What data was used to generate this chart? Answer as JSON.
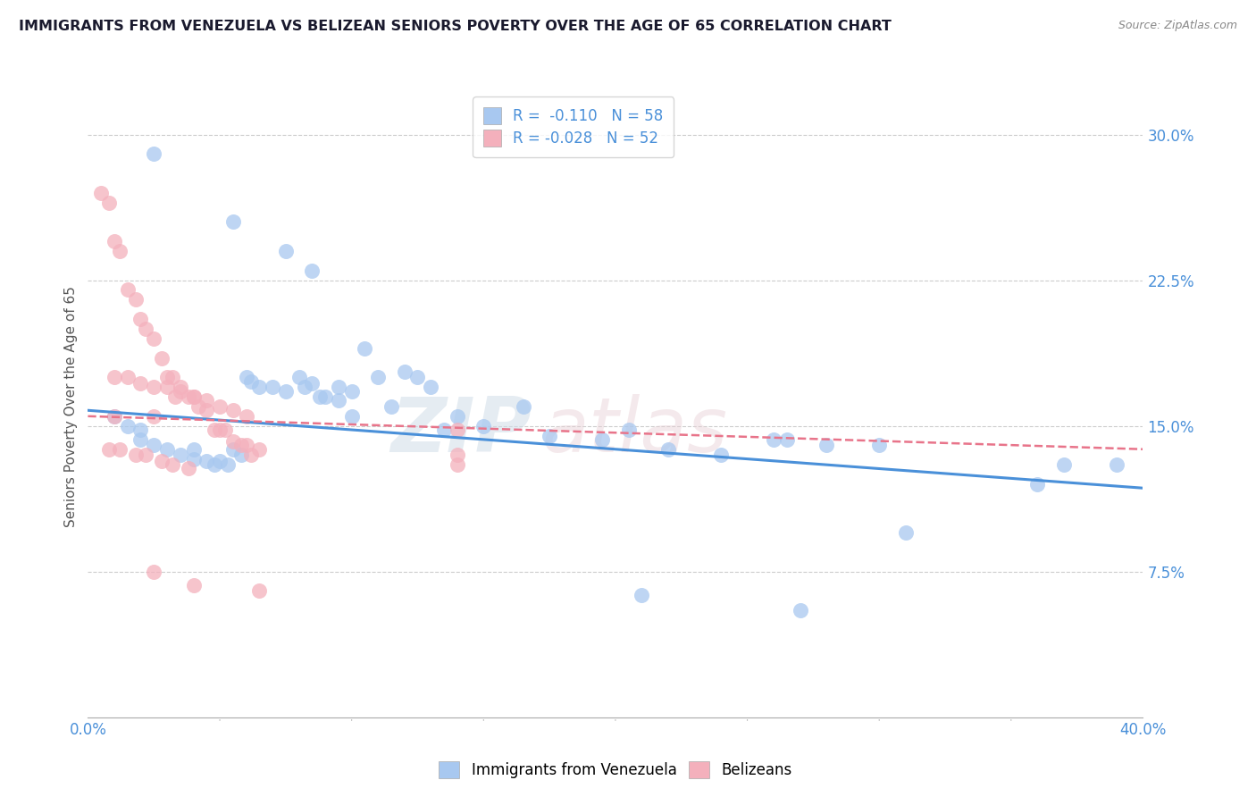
{
  "title": "IMMIGRANTS FROM VENEZUELA VS BELIZEAN SENIORS POVERTY OVER THE AGE OF 65 CORRELATION CHART",
  "source": "Source: ZipAtlas.com",
  "ylabel": "Seniors Poverty Over the Age of 65",
  "yticks": [
    0.0,
    0.075,
    0.15,
    0.225,
    0.3
  ],
  "ytick_labels": [
    "",
    "7.5%",
    "15.0%",
    "22.5%",
    "30.0%"
  ],
  "xmin": 0.0,
  "xmax": 0.4,
  "ymin": 0.0,
  "ymax": 0.32,
  "legend_entry1": "R =  -0.110   N = 58",
  "legend_entry2": "R = -0.028   N = 52",
  "legend_label1": "Immigrants from Venezuela",
  "legend_label2": "Belizeans",
  "blue_color": "#A8C8F0",
  "pink_color": "#F4B0BC",
  "blue_line_color": "#4A90D9",
  "pink_line_color": "#E8748A",
  "title_color": "#1a1a2e",
  "axis_label_color": "#4A90D9",
  "watermark_zip": "ZIP",
  "watermark_atlas": "atlas",
  "grid_color": "#cccccc",
  "background_color": "#ffffff",
  "blue_scatter_x": [
    0.025,
    0.055,
    0.075,
    0.085,
    0.01,
    0.015,
    0.02,
    0.02,
    0.025,
    0.03,
    0.035,
    0.04,
    0.04,
    0.045,
    0.048,
    0.05,
    0.053,
    0.055,
    0.058,
    0.06,
    0.062,
    0.065,
    0.07,
    0.075,
    0.08,
    0.082,
    0.085,
    0.088,
    0.09,
    0.095,
    0.095,
    0.1,
    0.1,
    0.105,
    0.11,
    0.115,
    0.12,
    0.125,
    0.13,
    0.135,
    0.14,
    0.15,
    0.165,
    0.175,
    0.195,
    0.205,
    0.22,
    0.24,
    0.28,
    0.3,
    0.31,
    0.36,
    0.37,
    0.39,
    0.21,
    0.26,
    0.265,
    0.27
  ],
  "blue_scatter_y": [
    0.29,
    0.255,
    0.24,
    0.23,
    0.155,
    0.15,
    0.148,
    0.143,
    0.14,
    0.138,
    0.135,
    0.133,
    0.138,
    0.132,
    0.13,
    0.132,
    0.13,
    0.138,
    0.135,
    0.175,
    0.173,
    0.17,
    0.17,
    0.168,
    0.175,
    0.17,
    0.172,
    0.165,
    0.165,
    0.163,
    0.17,
    0.168,
    0.155,
    0.19,
    0.175,
    0.16,
    0.178,
    0.175,
    0.17,
    0.148,
    0.155,
    0.15,
    0.16,
    0.145,
    0.143,
    0.148,
    0.138,
    0.135,
    0.14,
    0.14,
    0.095,
    0.12,
    0.13,
    0.13,
    0.063,
    0.143,
    0.143,
    0.055
  ],
  "pink_scatter_x": [
    0.005,
    0.008,
    0.01,
    0.01,
    0.012,
    0.015,
    0.018,
    0.02,
    0.022,
    0.025,
    0.025,
    0.028,
    0.03,
    0.032,
    0.033,
    0.035,
    0.038,
    0.04,
    0.042,
    0.045,
    0.048,
    0.05,
    0.052,
    0.055,
    0.058,
    0.06,
    0.062,
    0.065,
    0.01,
    0.015,
    0.02,
    0.025,
    0.03,
    0.035,
    0.04,
    0.045,
    0.05,
    0.055,
    0.06,
    0.008,
    0.012,
    0.018,
    0.022,
    0.028,
    0.032,
    0.038,
    0.14,
    0.14,
    0.14,
    0.025,
    0.04,
    0.065
  ],
  "pink_scatter_y": [
    0.27,
    0.265,
    0.245,
    0.155,
    0.24,
    0.22,
    0.215,
    0.205,
    0.2,
    0.195,
    0.155,
    0.185,
    0.175,
    0.175,
    0.165,
    0.17,
    0.165,
    0.165,
    0.16,
    0.158,
    0.148,
    0.148,
    0.148,
    0.142,
    0.14,
    0.14,
    0.135,
    0.138,
    0.175,
    0.175,
    0.172,
    0.17,
    0.17,
    0.168,
    0.165,
    0.163,
    0.16,
    0.158,
    0.155,
    0.138,
    0.138,
    0.135,
    0.135,
    0.132,
    0.13,
    0.128,
    0.13,
    0.135,
    0.148,
    0.075,
    0.068,
    0.065
  ],
  "blue_trend_x": [
    0.0,
    0.4
  ],
  "blue_trend_y": [
    0.158,
    0.118
  ],
  "pink_trend_x": [
    0.0,
    0.4
  ],
  "pink_trend_y": [
    0.155,
    0.138
  ]
}
